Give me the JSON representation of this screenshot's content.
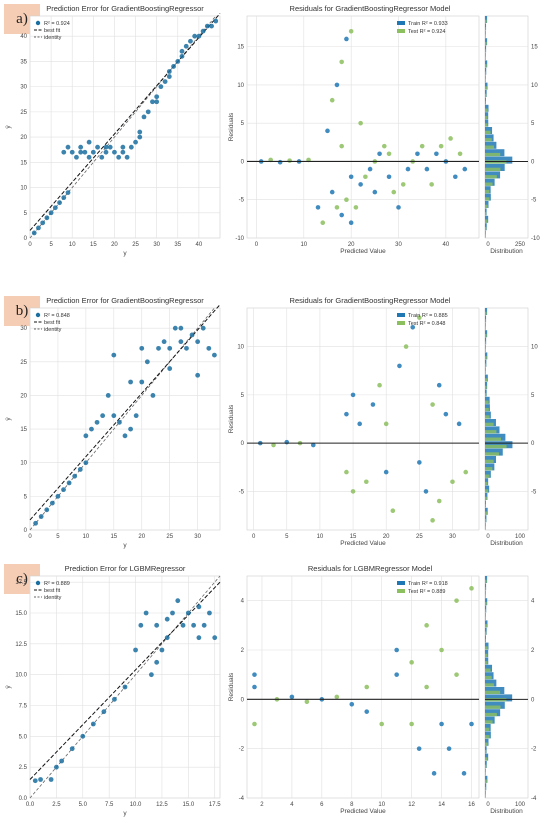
{
  "colors": {
    "train": "#1f77b4",
    "blue": "#1a6fa0",
    "test": "#8cbf5e",
    "zero": "#222222",
    "grid": "#e0e0e0",
    "bg": "#eaeaf2"
  },
  "chart_data": [
    {
      "label": "a)",
      "type": "scatter",
      "pe": {
        "title": "Prediction Error for GradientBoostingRegressor",
        "xlabel": "y",
        "ylabel": "ŷ",
        "xlim": [
          0,
          45
        ],
        "ylim": [
          0,
          44
        ],
        "xticks": [
          0,
          5,
          10,
          15,
          20,
          25,
          30,
          35,
          40
        ],
        "yticks": [
          0,
          5,
          10,
          15,
          20,
          25,
          30,
          35,
          40
        ],
        "legend": {
          "r2": "R² = 0.924",
          "best": "best fit",
          "identity": "identity"
        },
        "points": [
          [
            1,
            1
          ],
          [
            2,
            2
          ],
          [
            3,
            3
          ],
          [
            4,
            4
          ],
          [
            5,
            5
          ],
          [
            6,
            6
          ],
          [
            7,
            7
          ],
          [
            8,
            8
          ],
          [
            9,
            9
          ],
          [
            8,
            17
          ],
          [
            9,
            18
          ],
          [
            10,
            17
          ],
          [
            11,
            16
          ],
          [
            12,
            18
          ],
          [
            13,
            17
          ],
          [
            14,
            19
          ],
          [
            15,
            17
          ],
          [
            16,
            18
          ],
          [
            17,
            16
          ],
          [
            18,
            17
          ],
          [
            19,
            18
          ],
          [
            20,
            17
          ],
          [
            21,
            16
          ],
          [
            22,
            17
          ],
          [
            23,
            16
          ],
          [
            24,
            18
          ],
          [
            25,
            19
          ],
          [
            26,
            21
          ],
          [
            27,
            24
          ],
          [
            28,
            25
          ],
          [
            29,
            27
          ],
          [
            30,
            28
          ],
          [
            31,
            30
          ],
          [
            32,
            31
          ],
          [
            33,
            32
          ],
          [
            34,
            34
          ],
          [
            35,
            35
          ],
          [
            36,
            37
          ],
          [
            37,
            38
          ],
          [
            38,
            39
          ],
          [
            39,
            40
          ],
          [
            40,
            40
          ],
          [
            41,
            41
          ],
          [
            42,
            42
          ],
          [
            43,
            42
          ],
          [
            44,
            43
          ],
          [
            12,
            17
          ],
          [
            14,
            16
          ],
          [
            18,
            18
          ],
          [
            22,
            18
          ],
          [
            26,
            20
          ],
          [
            30,
            27
          ],
          [
            33,
            33
          ],
          [
            36,
            36
          ]
        ]
      },
      "res": {
        "title": "Residuals for GradientBoostingRegressor Model",
        "xlabel": "Predicted Value",
        "ylabel": "Residuals",
        "dlabel": "Distribution",
        "xlim": [
          -2,
          47
        ],
        "ylim": [
          -10,
          19
        ],
        "xticks": [
          0,
          10,
          20,
          30,
          40
        ],
        "yticks": [
          -10,
          -5,
          0,
          5,
          10,
          15
        ],
        "dticks": [
          "0",
          "250"
        ],
        "legend": {
          "train": "Train R² = 0.933",
          "test": "Test R² = 0.924"
        },
        "points": [
          [
            1,
            0
          ],
          [
            3,
            0.2
          ],
          [
            5,
            -0.1
          ],
          [
            7,
            0.1
          ],
          [
            9,
            0
          ],
          [
            11,
            0.2
          ],
          [
            13,
            -6
          ],
          [
            14,
            -8
          ],
          [
            15,
            4
          ],
          [
            16,
            8
          ],
          [
            17,
            10
          ],
          [
            18,
            13
          ],
          [
            19,
            16
          ],
          [
            20,
            17
          ],
          [
            16,
            -4
          ],
          [
            17,
            -6
          ],
          [
            18,
            -7
          ],
          [
            19,
            -5
          ],
          [
            20,
            -8
          ],
          [
            21,
            -6
          ],
          [
            22,
            -3
          ],
          [
            23,
            -2
          ],
          [
            24,
            -1
          ],
          [
            25,
            0
          ],
          [
            26,
            1
          ],
          [
            27,
            2
          ],
          [
            28,
            -2
          ],
          [
            29,
            -4
          ],
          [
            30,
            -6
          ],
          [
            31,
            -3
          ],
          [
            32,
            -1
          ],
          [
            33,
            0
          ],
          [
            34,
            1
          ],
          [
            35,
            2
          ],
          [
            36,
            -1
          ],
          [
            37,
            -3
          ],
          [
            38,
            1
          ],
          [
            39,
            2
          ],
          [
            40,
            0
          ],
          [
            41,
            3
          ],
          [
            42,
            -2
          ],
          [
            43,
            1
          ],
          [
            44,
            -1
          ],
          [
            18,
            2
          ],
          [
            20,
            -2
          ],
          [
            22,
            5
          ],
          [
            25,
            -4
          ],
          [
            28,
            1
          ]
        ]
      }
    },
    {
      "label": "b)",
      "type": "scatter",
      "pe": {
        "title": "Prediction Error for GradientBoostingRegressor",
        "xlabel": "y",
        "ylabel": "ŷ",
        "xlim": [
          0,
          34
        ],
        "ylim": [
          0,
          33
        ],
        "xticks": [
          0,
          5,
          10,
          15,
          20,
          25,
          30
        ],
        "yticks": [
          0,
          5,
          10,
          15,
          20,
          25,
          30
        ],
        "legend": {
          "r2": "R² = 0.848",
          "best": "best fit",
          "identity": "identity"
        },
        "points": [
          [
            1,
            1
          ],
          [
            2,
            2
          ],
          [
            3,
            3
          ],
          [
            4,
            4
          ],
          [
            5,
            5
          ],
          [
            6,
            6
          ],
          [
            7,
            7
          ],
          [
            8,
            8
          ],
          [
            9,
            9
          ],
          [
            10,
            10
          ],
          [
            10,
            14
          ],
          [
            11,
            15
          ],
          [
            12,
            16
          ],
          [
            13,
            17
          ],
          [
            14,
            20
          ],
          [
            15,
            26
          ],
          [
            16,
            16
          ],
          [
            17,
            14
          ],
          [
            18,
            15
          ],
          [
            19,
            17
          ],
          [
            20,
            22
          ],
          [
            21,
            25
          ],
          [
            22,
            20
          ],
          [
            23,
            27
          ],
          [
            24,
            28
          ],
          [
            25,
            27
          ],
          [
            26,
            30
          ],
          [
            27,
            28
          ],
          [
            28,
            27
          ],
          [
            29,
            29
          ],
          [
            30,
            28
          ],
          [
            31,
            30
          ],
          [
            32,
            27
          ],
          [
            33,
            26
          ],
          [
            15,
            17
          ],
          [
            20,
            27
          ],
          [
            25,
            24
          ],
          [
            30,
            23
          ],
          [
            18,
            22
          ],
          [
            27,
            30
          ]
        ]
      },
      "res": {
        "title": "Residuals for GradientBoostingRegressor Model",
        "xlabel": "Predicted Value",
        "ylabel": "Residuals",
        "dlabel": "Distribution",
        "xlim": [
          -1,
          34
        ],
        "ylim": [
          -9,
          14
        ],
        "xticks": [
          0,
          5,
          10,
          15,
          20,
          25,
          30
        ],
        "yticks": [
          -5,
          0,
          5,
          10
        ],
        "dticks": [
          "0",
          "100"
        ],
        "legend": {
          "train": "Train R² = 0.885",
          "test": "Test R² = 0.848"
        },
        "points": [
          [
            1,
            0
          ],
          [
            3,
            -0.2
          ],
          [
            5,
            0.1
          ],
          [
            7,
            0
          ],
          [
            9,
            -0.2
          ],
          [
            14,
            -3
          ],
          [
            14,
            3
          ],
          [
            15,
            -5
          ],
          [
            16,
            2
          ],
          [
            17,
            -4
          ],
          [
            18,
            4
          ],
          [
            19,
            6
          ],
          [
            20,
            -3
          ],
          [
            21,
            -7
          ],
          [
            22,
            8
          ],
          [
            23,
            10
          ],
          [
            24,
            12
          ],
          [
            25,
            13
          ],
          [
            26,
            -5
          ],
          [
            27,
            4
          ],
          [
            28,
            6
          ],
          [
            28,
            -6
          ],
          [
            29,
            3
          ],
          [
            30,
            -4
          ],
          [
            31,
            2
          ],
          [
            32,
            -3
          ],
          [
            15,
            5
          ],
          [
            20,
            2
          ],
          [
            25,
            -2
          ],
          [
            27,
            -8
          ]
        ]
      }
    },
    {
      "label": "c)",
      "type": "scatter",
      "pe": {
        "title": "Prediction Error for LGBMRegressor",
        "xlabel": "y",
        "ylabel": "ŷ",
        "xlim": [
          0,
          18
        ],
        "ylim": [
          0,
          18
        ],
        "xticks": [
          0.0,
          2.5,
          5.0,
          7.5,
          10.0,
          12.5,
          15.0,
          17.5
        ],
        "yticks": [
          0.0,
          2.5,
          5.0,
          7.5,
          10.0,
          12.5,
          15.0,
          17.5
        ],
        "legend": {
          "r2": "R² = 0.889",
          "best": "best fit",
          "identity": "identity"
        },
        "points": [
          [
            0.5,
            1.4
          ],
          [
            1,
            1.5
          ],
          [
            2,
            1.5
          ],
          [
            2.5,
            2.5
          ],
          [
            3,
            3
          ],
          [
            4,
            4
          ],
          [
            5,
            5
          ],
          [
            6,
            6
          ],
          [
            7,
            7
          ],
          [
            8,
            8
          ],
          [
            9,
            9
          ],
          [
            10,
            12
          ],
          [
            10.5,
            14
          ],
          [
            11,
            15
          ],
          [
            12,
            14
          ],
          [
            12.5,
            12
          ],
          [
            13,
            13
          ],
          [
            13.5,
            15
          ],
          [
            14,
            16
          ],
          [
            14.5,
            14
          ],
          [
            15,
            15
          ],
          [
            15.5,
            14
          ],
          [
            16,
            13
          ],
          [
            16.5,
            14
          ],
          [
            17,
            15
          ],
          [
            17.5,
            13
          ],
          [
            11.5,
            10
          ],
          [
            12,
            11
          ],
          [
            13,
            14.5
          ],
          [
            16,
            15.5
          ]
        ]
      },
      "res": {
        "title": "Residuals for LGBMRegressor Model",
        "xlabel": "Predicted Value",
        "ylabel": "Residuals",
        "dlabel": "Distribution",
        "xlim": [
          1,
          16.5
        ],
        "ylim": [
          -4,
          5
        ],
        "xticks": [
          2,
          4,
          6,
          8,
          10,
          12,
          14,
          16
        ],
        "yticks": [
          -4,
          -2,
          0,
          2,
          4
        ],
        "dticks": [
          "0",
          "100"
        ],
        "legend": {
          "train": "Train R² = 0.918",
          "test": "Test R² = 0.889"
        },
        "points": [
          [
            1.5,
            1
          ],
          [
            1.5,
            -1
          ],
          [
            1.5,
            0.5
          ],
          [
            3,
            0
          ],
          [
            4,
            0.1
          ],
          [
            5,
            -0.1
          ],
          [
            6,
            0
          ],
          [
            7,
            0.1
          ],
          [
            8,
            -0.2
          ],
          [
            9,
            0.5
          ],
          [
            9,
            -0.5
          ],
          [
            10,
            -1
          ],
          [
            11,
            1
          ],
          [
            12,
            1.5
          ],
          [
            12.5,
            -2
          ],
          [
            13,
            3
          ],
          [
            13.5,
            -3
          ],
          [
            14,
            2
          ],
          [
            14.5,
            -2
          ],
          [
            15,
            4
          ],
          [
            15.5,
            -3
          ],
          [
            16,
            4.5
          ],
          [
            16,
            -1
          ],
          [
            13,
            0.5
          ],
          [
            14,
            -1
          ],
          [
            12,
            -1
          ],
          [
            11,
            2
          ],
          [
            15,
            1
          ]
        ]
      }
    }
  ]
}
